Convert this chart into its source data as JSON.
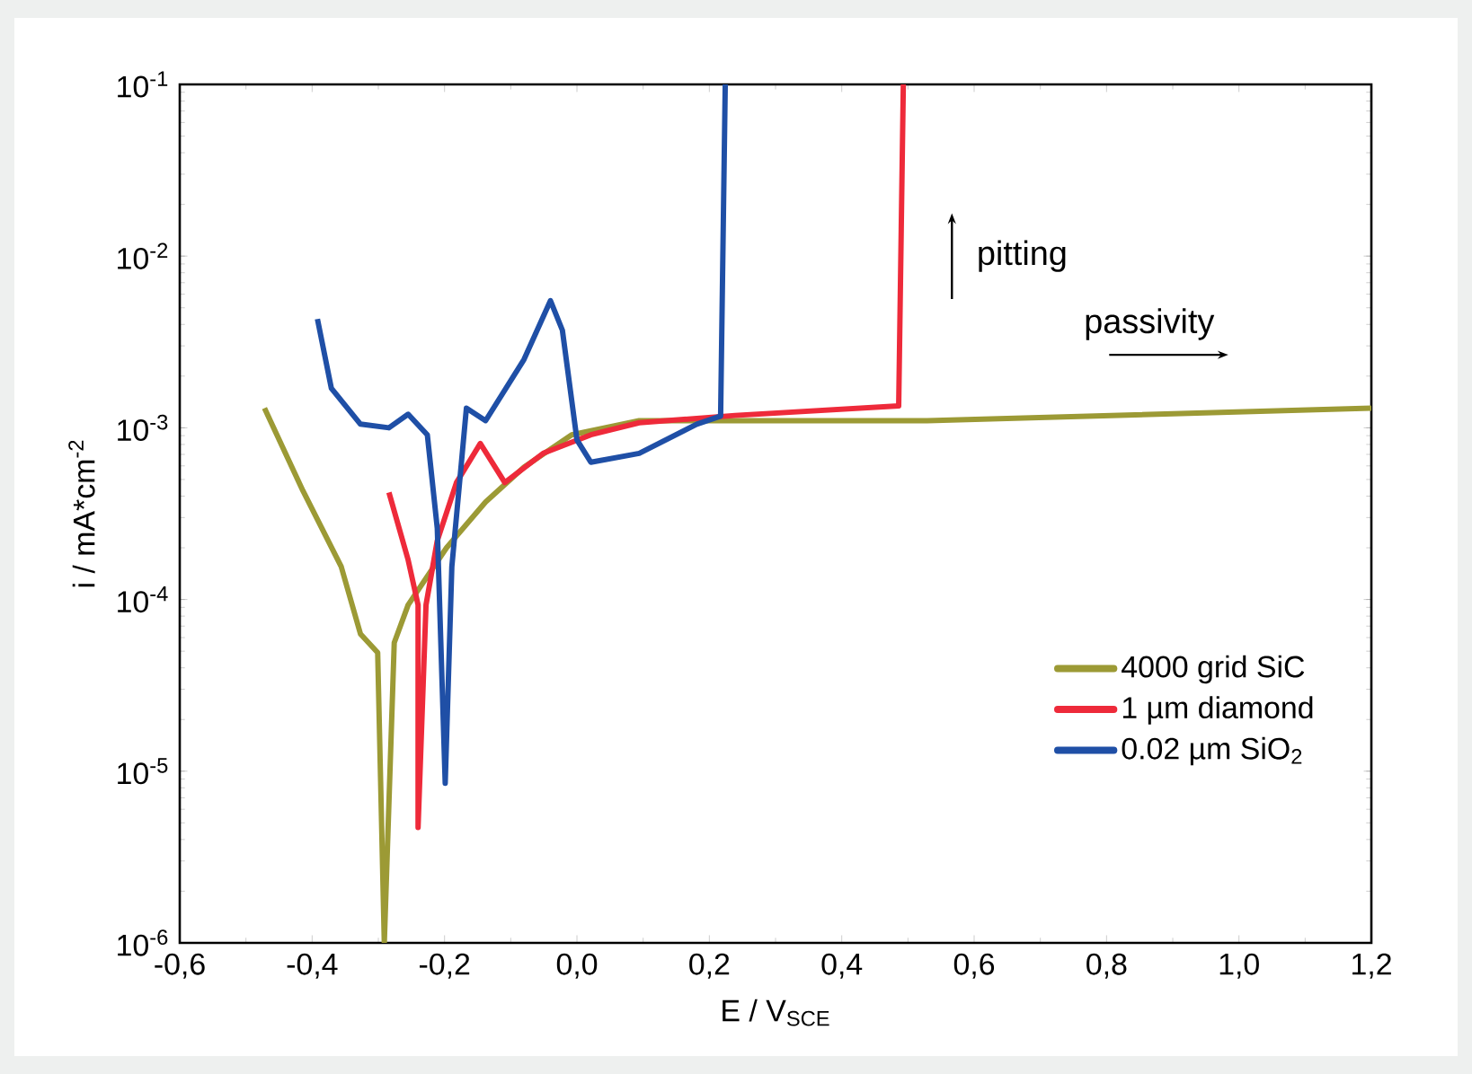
{
  "chart_data": {
    "type": "line",
    "xlabel": "E / V$_{SCE}$",
    "ylabel": "i / mA*cm$^{-2}$",
    "log": "y",
    "xlim": [
      -0.6,
      1.2
    ],
    "ylim": [
      1e-06,
      0.1
    ],
    "xticks": [
      {
        "value": -0.6,
        "label": "-0,6"
      },
      {
        "value": -0.4,
        "label": "-0,4"
      },
      {
        "value": -0.2,
        "label": "-0,2"
      },
      {
        "value": 0.0,
        "label": "0,0"
      },
      {
        "value": 0.2,
        "label": "0,2"
      },
      {
        "value": 0.4,
        "label": "0,4"
      },
      {
        "value": 0.6,
        "label": "0,6"
      },
      {
        "value": 0.8,
        "label": "0,8"
      },
      {
        "value": 1.0,
        "label": "1,0"
      },
      {
        "value": 1.2,
        "label": "1,2"
      }
    ],
    "yticks": [
      {
        "value": 1e-06,
        "label": "10$^{-6}$"
      },
      {
        "value": 1e-05,
        "label": "10$^{-5}$"
      },
      {
        "value": 0.0001,
        "label": "10$^{-4}$"
      },
      {
        "value": 0.001,
        "label": "10$^{-3}$"
      },
      {
        "value": 0.01,
        "label": "10$^{-2}$"
      },
      {
        "value": 0.1,
        "label": "10$^{-1}$"
      }
    ],
    "legend": "bottom right",
    "grid": false,
    "marker": "none",
    "line_style": "solid",
    "annotations": [
      "pitting",
      "passivity"
    ],
    "series": [
      {
        "name": "4000 grid SiC",
        "color": "#9c9a35",
        "x": [
          -0.472,
          -0.414,
          -0.356,
          -0.327,
          -0.301,
          -0.291,
          -0.276,
          -0.255,
          -0.197,
          -0.138,
          -0.08,
          -0.008,
          0.094,
          0.529,
          1.2
        ],
        "values": [
          0.0013,
          0.00043,
          0.000155,
          6.3e-05,
          4.9e-05,
          1e-06,
          5.6e-05,
          9.3e-05,
          0.0002,
          0.00037,
          0.00059,
          0.00091,
          0.0011,
          0.0011,
          0.0013
        ]
      },
      {
        "name": "1 µm diamond",
        "color": "#ee2a3a",
        "x": [
          -0.284,
          -0.255,
          -0.24,
          -0.24,
          -0.228,
          -0.211,
          -0.182,
          -0.146,
          -0.109,
          -0.051,
          0.021,
          0.094,
          0.239,
          0.486,
          0.493
        ],
        "values": [
          0.00042,
          0.00017,
          9.3e-05,
          4.7e-06,
          9.3e-05,
          0.00022,
          0.00048,
          0.00081,
          0.00048,
          0.00071,
          0.00091,
          0.00107,
          0.00118,
          0.00134,
          0.1
        ]
      },
      {
        "name": "0.02 µm SiO$_{2}$",
        "color": "#1f4fa6",
        "x": [
          -0.392,
          -0.371,
          -0.327,
          -0.284,
          -0.255,
          -0.226,
          -0.211,
          -0.199,
          -0.189,
          -0.167,
          -0.138,
          -0.08,
          -0.04,
          -0.022,
          0.0,
          0.021,
          0.094,
          0.181,
          0.217,
          0.224
        ],
        "values": [
          0.0043,
          0.0017,
          0.00105,
          0.001,
          0.0012,
          0.00091,
          0.00026,
          8.5e-06,
          0.000155,
          0.0013,
          0.0011,
          0.0025,
          0.0055,
          0.0037,
          0.00085,
          0.00063,
          0.00071,
          0.00105,
          0.00117,
          0.1
        ]
      }
    ]
  }
}
